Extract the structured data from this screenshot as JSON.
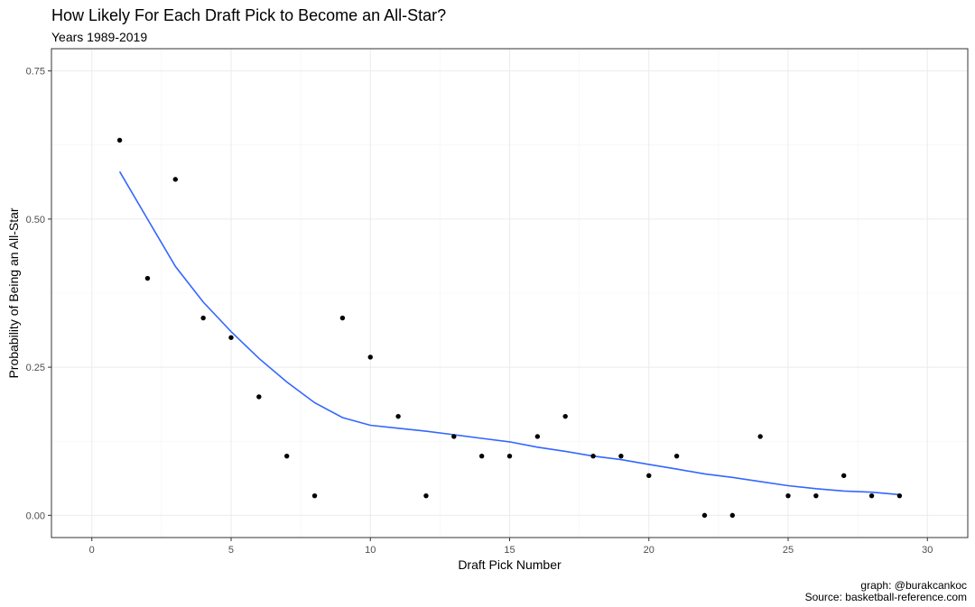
{
  "chart_data": {
    "type": "scatter",
    "title": "How Likely For Each Draft Pick to Become an All-Star?",
    "subtitle": "Years 1989-2019",
    "xlabel": "Draft Pick Number",
    "ylabel": "Probability of Being an All-Star",
    "xlim": [
      0,
      30
    ],
    "ylim": [
      0,
      0.75
    ],
    "x_ticks": [
      0,
      5,
      10,
      15,
      20,
      25,
      30
    ],
    "x_tick_labels": [
      "0",
      "5",
      "10",
      "15",
      "20",
      "25",
      "30"
    ],
    "y_ticks": [
      0,
      0.25,
      0.5,
      0.75
    ],
    "y_tick_labels": [
      "0.00",
      "0.25",
      "0.50",
      "0.75"
    ],
    "grid": true,
    "point_color": "#000000",
    "smooth_color": "#3366FF",
    "points": [
      {
        "x": 1,
        "y": 0.633
      },
      {
        "x": 2,
        "y": 0.4
      },
      {
        "x": 3,
        "y": 0.567
      },
      {
        "x": 4,
        "y": 0.333
      },
      {
        "x": 5,
        "y": 0.3
      },
      {
        "x": 6,
        "y": 0.2
      },
      {
        "x": 7,
        "y": 0.1
      },
      {
        "x": 8,
        "y": 0.033
      },
      {
        "x": 9,
        "y": 0.333
      },
      {
        "x": 10,
        "y": 0.267
      },
      {
        "x": 11,
        "y": 0.167
      },
      {
        "x": 12,
        "y": 0.033
      },
      {
        "x": 13,
        "y": 0.133
      },
      {
        "x": 14,
        "y": 0.1
      },
      {
        "x": 15,
        "y": 0.1
      },
      {
        "x": 16,
        "y": 0.133
      },
      {
        "x": 17,
        "y": 0.167
      },
      {
        "x": 18,
        "y": 0.1
      },
      {
        "x": 19,
        "y": 0.1
      },
      {
        "x": 20,
        "y": 0.067
      },
      {
        "x": 21,
        "y": 0.1
      },
      {
        "x": 22,
        "y": 0.0
      },
      {
        "x": 23,
        "y": 0.0
      },
      {
        "x": 24,
        "y": 0.133
      },
      {
        "x": 25,
        "y": 0.033
      },
      {
        "x": 26,
        "y": 0.033
      },
      {
        "x": 27,
        "y": 0.067
      },
      {
        "x": 28,
        "y": 0.033
      },
      {
        "x": 29,
        "y": 0.033
      }
    ],
    "smooth": [
      {
        "x": 1,
        "y": 0.58
      },
      {
        "x": 2,
        "y": 0.5
      },
      {
        "x": 3,
        "y": 0.42
      },
      {
        "x": 4,
        "y": 0.36
      },
      {
        "x": 5,
        "y": 0.31
      },
      {
        "x": 6,
        "y": 0.265
      },
      {
        "x": 7,
        "y": 0.225
      },
      {
        "x": 8,
        "y": 0.19
      },
      {
        "x": 9,
        "y": 0.165
      },
      {
        "x": 10,
        "y": 0.152
      },
      {
        "x": 11,
        "y": 0.147
      },
      {
        "x": 12,
        "y": 0.142
      },
      {
        "x": 13,
        "y": 0.136
      },
      {
        "x": 14,
        "y": 0.13
      },
      {
        "x": 15,
        "y": 0.124
      },
      {
        "x": 16,
        "y": 0.115
      },
      {
        "x": 17,
        "y": 0.108
      },
      {
        "x": 18,
        "y": 0.1
      },
      {
        "x": 19,
        "y": 0.094
      },
      {
        "x": 20,
        "y": 0.086
      },
      {
        "x": 21,
        "y": 0.078
      },
      {
        "x": 22,
        "y": 0.07
      },
      {
        "x": 23,
        "y": 0.064
      },
      {
        "x": 24,
        "y": 0.057
      },
      {
        "x": 25,
        "y": 0.05
      },
      {
        "x": 26,
        "y": 0.045
      },
      {
        "x": 27,
        "y": 0.041
      },
      {
        "x": 28,
        "y": 0.039
      },
      {
        "x": 29,
        "y": 0.035
      }
    ]
  },
  "caption": {
    "line1": "graph: @burakcankoc",
    "line2": "Source: basketball-reference.com"
  }
}
